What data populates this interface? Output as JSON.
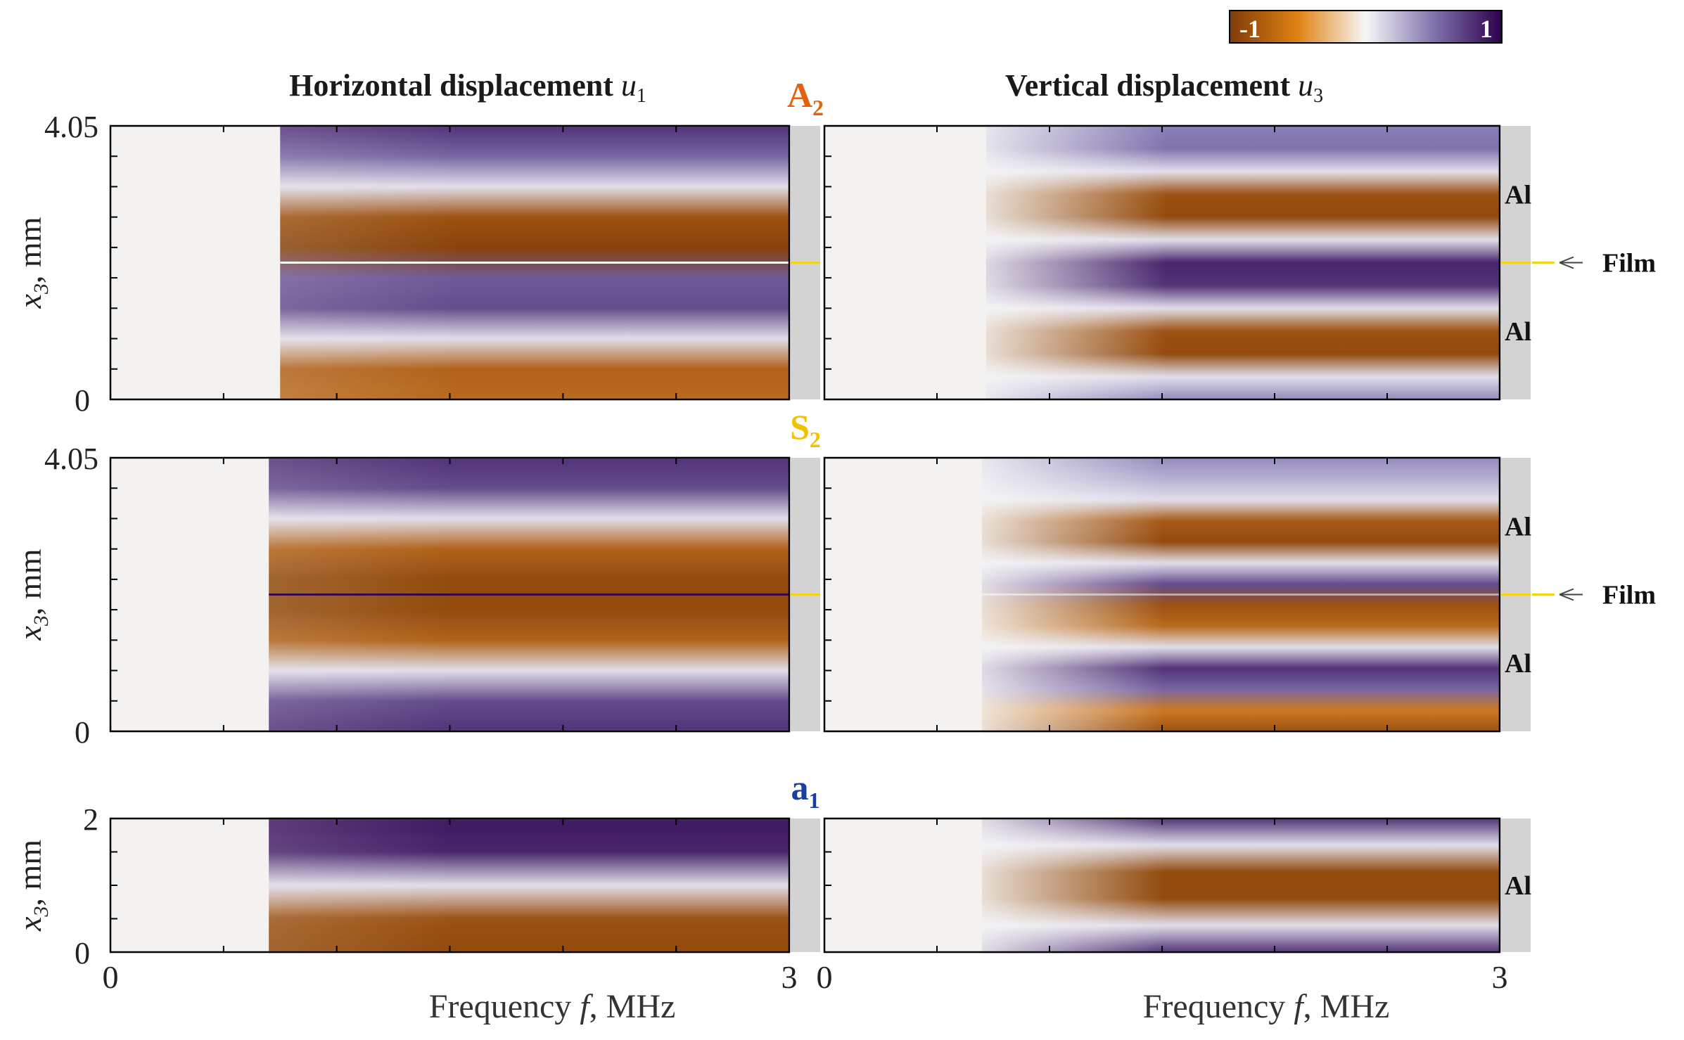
{
  "chart_data": {
    "type": "heatmap",
    "colorbar": {
      "min": -1,
      "max": 1,
      "min_label": "-1",
      "max_label": "1"
    },
    "column_titles": [
      {
        "text": "Horizontal displacement ",
        "var": "u",
        "sub": "1"
      },
      {
        "text": "Vertical displacement ",
        "var": "u",
        "sub": "3"
      }
    ],
    "xaxis": {
      "label_prefix": "Frequency ",
      "var": "f",
      "label_suffix": ", MHz",
      "range": [
        0,
        3
      ],
      "tick_labels": [
        "0",
        "3"
      ]
    },
    "yaxis": {
      "var": "x",
      "sub": "3",
      "label_suffix": ", mm"
    },
    "film_label": "Film",
    "layer_label": "Al",
    "colors": {
      "neg": "#7f3b08",
      "mid": "#f7f7f7",
      "pos": "#2d004b",
      "film": "#f2d21a",
      "strip": "#d3d3d3",
      "blank": "#f4f2f0"
    },
    "rows": [
      {
        "mode": "A",
        "mode_sub": "2",
        "mode_color": "#e06410",
        "yrange": [
          0,
          4.05
        ],
        "ytick_labels": [
          "0",
          "4.05"
        ],
        "film_at": 2.025,
        "layers": [
          "Al",
          "Al"
        ],
        "u1": {
          "f_start": 0.75,
          "pattern": [
            0.8,
            0.6,
            0.1,
            -0.85,
            -0.95,
            0.65,
            0.7,
            0.1,
            -0.75,
            -0.7
          ],
          "film_contrast": 0.95
        },
        "u3": {
          "f_start": 0.72,
          "pattern": [
            0.5,
            0.55,
            0.1,
            -0.85,
            -0.9,
            0.1,
            0.85,
            0.8,
            0.1,
            -0.85,
            -0.9,
            0.1,
            0.45
          ],
          "film_contrast": 0
        }
      },
      {
        "mode": "S",
        "mode_sub": "2",
        "mode_color": "#f2c200",
        "yrange": [
          0,
          4.05
        ],
        "ytick_labels": [
          "0",
          "4.05"
        ],
        "film_at": 2.025,
        "layers": [
          "Al",
          "Al"
        ],
        "u1": {
          "f_start": 0.7,
          "pattern": [
            0.8,
            0.7,
            0.1,
            -0.75,
            -0.9,
            -0.9,
            -0.75,
            0.1,
            0.7,
            0.8
          ],
          "film_contrast": 0.9
        },
        "u3": {
          "f_start": 0.7,
          "pattern": [
            0.45,
            0.3,
            0.1,
            -0.8,
            -0.9,
            0.1,
            0.7,
            -0.85,
            -0.7,
            0.1,
            0.8,
            0.6,
            -0.6,
            -0.85
          ],
          "film_contrast": 0.5
        }
      },
      {
        "mode": "a",
        "mode_sub": "1",
        "mode_color": "#1a3fa0",
        "yrange": [
          0,
          2
        ],
        "ytick_labels": [
          "0",
          "2"
        ],
        "film_at": null,
        "layers": [
          "Al"
        ],
        "u1": {
          "f_start": 0.7,
          "pattern": [
            0.9,
            0.85,
            0.1,
            -0.85,
            -0.9
          ],
          "film_contrast": 0
        },
        "u3": {
          "f_start": 0.7,
          "pattern": [
            0.8,
            0.1,
            -0.9,
            -0.9,
            0.1,
            0.8
          ],
          "film_contrast": 0
        }
      }
    ]
  }
}
